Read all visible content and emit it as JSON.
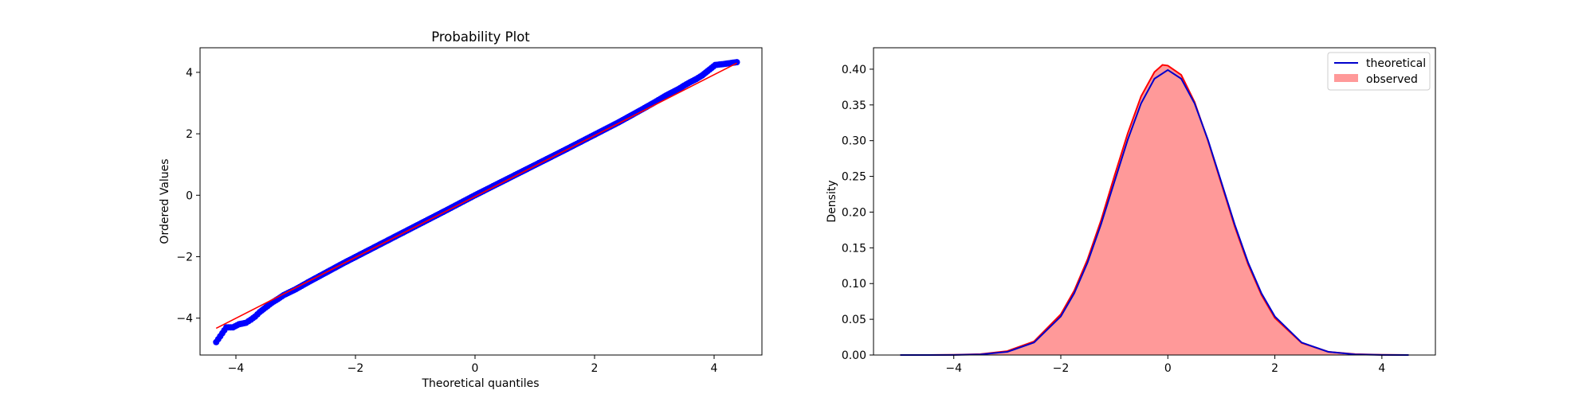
{
  "chart_data": [
    {
      "type": "scatter",
      "title": "Probability Plot",
      "xlabel": "Theoretical quantiles",
      "ylabel": "Ordered Values",
      "xlim": [
        -4.6,
        4.8
      ],
      "ylim": [
        -5.2,
        4.8
      ],
      "xticks": [
        -4,
        -2,
        0,
        2,
        4
      ],
      "yticks": [
        -4,
        -2,
        0,
        2,
        4
      ],
      "tick_labels_x": [
        "−4",
        "−2",
        "0",
        "2",
        "4"
      ],
      "tick_labels_y": [
        "−4",
        "−2",
        "0",
        "2",
        "4"
      ],
      "grid": false,
      "colors": {
        "points": "#0000ff",
        "fit_line": "#ff0000"
      },
      "series": [
        {
          "kind": "points",
          "x": [
            -4.33,
            -4.16,
            -4.05,
            -3.95,
            -3.83,
            -3.75,
            -3.68,
            -3.6,
            -3.5,
            -3.4,
            -3.3,
            -3.2,
            -3.0,
            -2.8,
            -2.6,
            -2.4,
            -2.2,
            -2.0,
            -1.5,
            -1.0,
            -0.5,
            0.0,
            0.5,
            1.0,
            1.5,
            2.0,
            2.4,
            2.8,
            3.0,
            3.2,
            3.4,
            3.5,
            3.6,
            3.7,
            3.8,
            4.02,
            4.16,
            4.38
          ],
          "y": [
            -4.78,
            -4.3,
            -4.3,
            -4.2,
            -4.15,
            -4.05,
            -3.95,
            -3.8,
            -3.65,
            -3.5,
            -3.38,
            -3.25,
            -3.06,
            -2.84,
            -2.63,
            -2.42,
            -2.21,
            -2.01,
            -1.51,
            -1.01,
            -0.51,
            0.0,
            0.49,
            0.98,
            1.47,
            1.97,
            2.37,
            2.8,
            3.02,
            3.25,
            3.45,
            3.57,
            3.68,
            3.78,
            3.9,
            4.24,
            4.27,
            4.33
          ]
        },
        {
          "kind": "fit_line",
          "x": [
            -4.33,
            4.38
          ],
          "y": [
            -4.33,
            4.3
          ]
        }
      ]
    },
    {
      "type": "area",
      "title": "",
      "xlabel": "",
      "ylabel": "Density",
      "xlim": [
        -5.5,
        5.0
      ],
      "ylim": [
        0.0,
        0.43
      ],
      "xticks": [
        -4,
        -2,
        0,
        2,
        4
      ],
      "yticks": [
        0.0,
        0.05,
        0.1,
        0.15,
        0.2,
        0.25,
        0.3,
        0.35,
        0.4
      ],
      "tick_labels_x": [
        "−4",
        "−2",
        "0",
        "2",
        "4"
      ],
      "tick_labels_y": [
        "0.00",
        "0.05",
        "0.10",
        "0.15",
        "0.20",
        "0.25",
        "0.30",
        "0.35",
        "0.40"
      ],
      "grid": false,
      "legend": {
        "placement": "top-right",
        "entries": [
          "theoretical",
          "observed"
        ]
      },
      "colors": {
        "theoretical": "#0000cc",
        "observed_fill": "#ff9999",
        "observed_line": "#ff0000"
      },
      "series": [
        {
          "name": "theoretical",
          "kind": "line",
          "x": [
            -5.0,
            -4.5,
            -4.0,
            -3.5,
            -3.0,
            -2.5,
            -2.0,
            -1.75,
            -1.5,
            -1.25,
            -1.0,
            -0.75,
            -0.5,
            -0.25,
            0.0,
            0.25,
            0.5,
            0.75,
            1.0,
            1.25,
            1.5,
            1.75,
            2.0,
            2.5,
            3.0,
            3.5,
            4.0,
            4.5
          ],
          "y": [
            0.0,
            0.0,
            0.0001,
            0.0009,
            0.0044,
            0.0175,
            0.054,
            0.0863,
            0.1295,
            0.1826,
            0.242,
            0.3011,
            0.3521,
            0.3867,
            0.3989,
            0.3867,
            0.3521,
            0.3011,
            0.242,
            0.1826,
            0.1295,
            0.0863,
            0.054,
            0.0175,
            0.0044,
            0.0009,
            0.0001,
            0.0
          ]
        },
        {
          "name": "observed",
          "kind": "area",
          "x": [
            -5.0,
            -4.5,
            -4.0,
            -3.5,
            -3.0,
            -2.5,
            -2.0,
            -1.75,
            -1.5,
            -1.25,
            -1.0,
            -0.75,
            -0.5,
            -0.25,
            -0.1,
            0.0,
            0.25,
            0.5,
            0.75,
            1.0,
            1.25,
            1.5,
            1.75,
            2.0,
            2.5,
            3.0,
            3.5,
            4.0,
            4.5
          ],
          "y": [
            0.0,
            0.0,
            0.0003,
            0.0012,
            0.0055,
            0.019,
            0.057,
            0.09,
            0.134,
            0.188,
            0.25,
            0.31,
            0.362,
            0.396,
            0.406,
            0.405,
            0.392,
            0.354,
            0.3,
            0.24,
            0.18,
            0.127,
            0.084,
            0.052,
            0.017,
            0.0045,
            0.0012,
            0.0003,
            0.0
          ]
        }
      ]
    }
  ]
}
